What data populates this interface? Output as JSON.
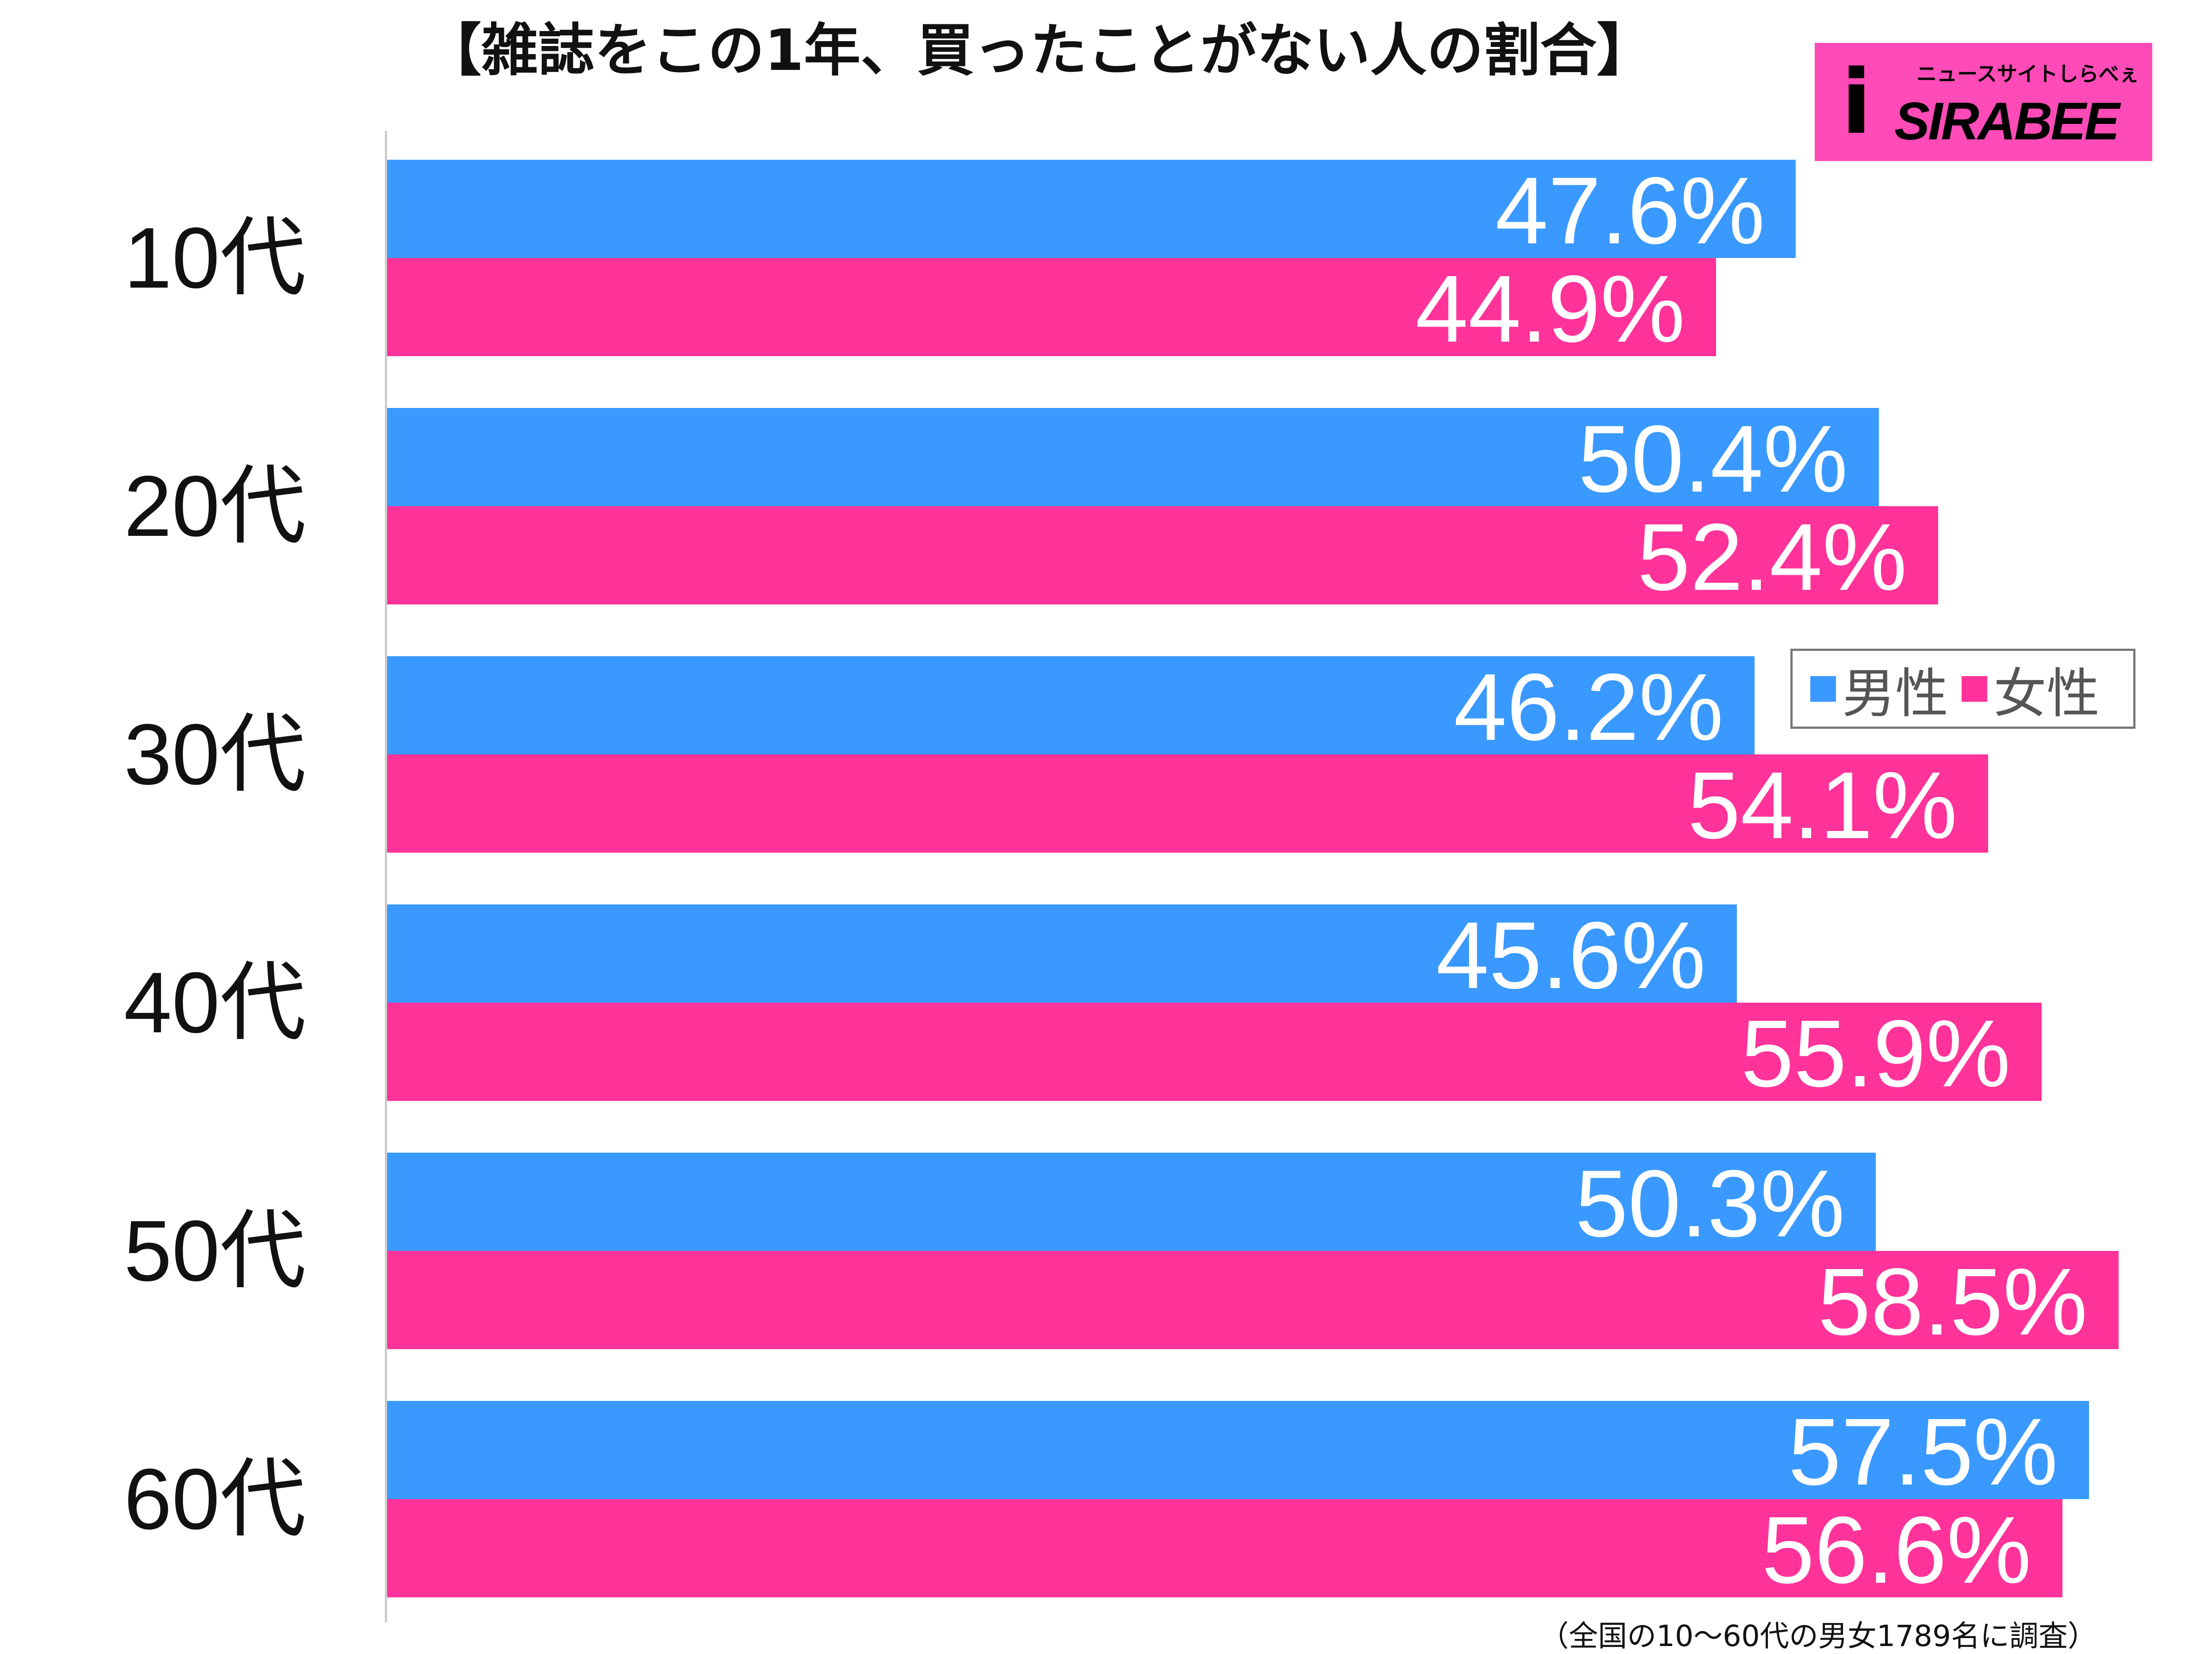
{
  "title": "【雑誌をこの1年、買ったことがない人の割合】",
  "logo": {
    "text": "SIRABEE",
    "subtext": "ニュースサイトしらべぇ"
  },
  "colors": {
    "male": "#3a99ff",
    "female": "#ff3399",
    "logo_bg": "#ff4bb7"
  },
  "note": "（全国の10〜60代の男女1789名に調査）",
  "chart_data": {
    "type": "bar",
    "orientation": "horizontal",
    "title": "【雑誌をこの1年、買ったことがない人の割合】",
    "categories": [
      "10代",
      "20代",
      "30代",
      "40代",
      "50代",
      "60代"
    ],
    "series": [
      {
        "name": "男性",
        "color": "#3a99ff",
        "values": [
          47.6,
          50.4,
          46.2,
          45.6,
          50.3,
          57.5
        ],
        "labels": [
          "47.6%",
          "50.4%",
          "46.2%",
          "45.6%",
          "50.3%",
          "57.5%"
        ]
      },
      {
        "name": "女性",
        "color": "#ff3399",
        "values": [
          44.9,
          52.4,
          54.1,
          55.9,
          58.5,
          56.6
        ],
        "labels": [
          "44.9%",
          "52.4%",
          "54.1%",
          "55.9%",
          "58.5%",
          "56.6%"
        ]
      }
    ],
    "xlim": [
      0,
      61
    ],
    "grid": false,
    "legend": "right-middle"
  }
}
